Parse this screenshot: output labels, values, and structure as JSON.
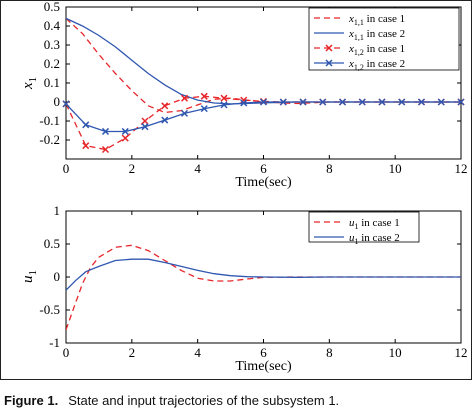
{
  "caption": {
    "label": "Figure 1.",
    "text": "State and input trajectories of the subsystem 1."
  },
  "colors": {
    "case1": "#e8262a",
    "case2": "#2f57b0",
    "axis": "#000000"
  },
  "chart_data": [
    {
      "type": "line",
      "ylabel": "x",
      "ylabel_sub": "1",
      "xlabel": "Time(sec)",
      "xlim": [
        0,
        12
      ],
      "ylim": [
        -0.3,
        0.5
      ],
      "xticks": [
        0,
        2,
        4,
        6,
        8,
        10,
        12
      ],
      "yticks": [
        -0.3,
        -0.1,
        0.1,
        0.3,
        0.5
      ],
      "ytick_labels": [
        "",
        "-0.1",
        "0.1",
        "0.3",
        "0.5"
      ],
      "extra_tick_labels": [
        "0.4",
        "0.2",
        "0",
        "-0.2"
      ],
      "legend_position": "top-right",
      "series": [
        {
          "name": "x",
          "sub": "1,1",
          "suffix": " in case 1",
          "style": "dashed",
          "color": "case1",
          "marker": "none",
          "points": [
            [
              0,
              0.44
            ],
            [
              0.5,
              0.36
            ],
            [
              1,
              0.25
            ],
            [
              1.5,
              0.15
            ],
            [
              2,
              0.06
            ],
            [
              2.5,
              -0.02
            ],
            [
              3,
              -0.055
            ],
            [
              3.5,
              -0.045
            ],
            [
              4,
              -0.015
            ],
            [
              4.5,
              0.015
            ],
            [
              5,
              0.02
            ],
            [
              5.5,
              0.01
            ],
            [
              6,
              0.0
            ],
            [
              7,
              -0.008
            ],
            [
              8,
              0.0
            ],
            [
              9,
              0.0
            ],
            [
              10,
              0.0
            ],
            [
              11,
              0.0
            ],
            [
              12,
              0.0
            ]
          ]
        },
        {
          "name": "x",
          "sub": "1,1",
          "suffix": " in case 2",
          "style": "solid",
          "color": "case2",
          "marker": "none",
          "points": [
            [
              0,
              0.44
            ],
            [
              0.5,
              0.4
            ],
            [
              1,
              0.35
            ],
            [
              1.5,
              0.29
            ],
            [
              2,
              0.22
            ],
            [
              2.5,
              0.15
            ],
            [
              3,
              0.09
            ],
            [
              3.5,
              0.04
            ],
            [
              4,
              0.01
            ],
            [
              4.5,
              -0.005
            ],
            [
              5,
              -0.01
            ],
            [
              5.5,
              -0.008
            ],
            [
              6,
              -0.004
            ],
            [
              7,
              0.0
            ],
            [
              8,
              0.0
            ],
            [
              9,
              0.0
            ],
            [
              10,
              0.0
            ],
            [
              11,
              0.0
            ],
            [
              12,
              0.0
            ]
          ]
        },
        {
          "name": "x",
          "sub": "1,2",
          "suffix": " in case 1",
          "style": "dashed",
          "color": "case1",
          "marker": "x",
          "points": [
            [
              0,
              -0.01
            ],
            [
              0.6,
              -0.23
            ],
            [
              1.2,
              -0.25
            ],
            [
              1.8,
              -0.19
            ],
            [
              2.4,
              -0.1
            ],
            [
              3.0,
              -0.02
            ],
            [
              3.6,
              0.02
            ],
            [
              4.2,
              0.03
            ],
            [
              4.8,
              0.02
            ],
            [
              5.4,
              0.01
            ],
            [
              6.0,
              0.003
            ],
            [
              6.6,
              0.0
            ],
            [
              7.2,
              0.0
            ],
            [
              7.8,
              0.0
            ],
            [
              8.4,
              0.0
            ],
            [
              9.0,
              0.0
            ],
            [
              9.6,
              0.0
            ],
            [
              10.2,
              0.0
            ],
            [
              10.8,
              0.0
            ],
            [
              11.4,
              0.0
            ],
            [
              12,
              0.0
            ]
          ]
        },
        {
          "name": "x",
          "sub": "1,2",
          "suffix": " in case 2",
          "style": "solid",
          "color": "case2",
          "marker": "x",
          "points": [
            [
              0,
              -0.01
            ],
            [
              0.6,
              -0.12
            ],
            [
              1.2,
              -0.155
            ],
            [
              1.8,
              -0.155
            ],
            [
              2.4,
              -0.13
            ],
            [
              3.0,
              -0.095
            ],
            [
              3.6,
              -0.06
            ],
            [
              4.2,
              -0.035
            ],
            [
              4.8,
              -0.015
            ],
            [
              5.4,
              -0.005
            ],
            [
              6.0,
              0.0
            ],
            [
              6.6,
              0.0
            ],
            [
              7.2,
              0.0
            ],
            [
              7.8,
              0.0
            ],
            [
              8.4,
              0.0
            ],
            [
              9.0,
              0.0
            ],
            [
              9.6,
              0.0
            ],
            [
              10.2,
              0.0
            ],
            [
              10.8,
              0.0
            ],
            [
              11.4,
              0.0
            ],
            [
              12,
              0.0
            ]
          ]
        }
      ]
    },
    {
      "type": "line",
      "ylabel": "u",
      "ylabel_sub": "1",
      "xlabel": "Time(sec)",
      "xlim": [
        0,
        12
      ],
      "ylim": [
        -1,
        1
      ],
      "xticks": [
        0,
        2,
        4,
        6,
        8,
        10,
        12
      ],
      "yticks": [
        -1,
        -0.5,
        0,
        0.5,
        1
      ],
      "ytick_labels": [
        "-1",
        "-0.5",
        "0",
        "0.5",
        "1"
      ],
      "legend_position": "top-right",
      "series": [
        {
          "name": "u",
          "sub": "1",
          "suffix": " in case 1",
          "style": "dashed",
          "color": "case1",
          "marker": "none",
          "points": [
            [
              0,
              -0.8
            ],
            [
              0.25,
              -0.45
            ],
            [
              0.5,
              -0.1
            ],
            [
              0.75,
              0.15
            ],
            [
              1,
              0.3
            ],
            [
              1.5,
              0.45
            ],
            [
              2,
              0.48
            ],
            [
              2.5,
              0.4
            ],
            [
              3,
              0.25
            ],
            [
              3.5,
              0.1
            ],
            [
              4,
              -0.02
            ],
            [
              4.5,
              -0.06
            ],
            [
              5,
              -0.06
            ],
            [
              5.5,
              -0.03
            ],
            [
              6,
              -0.005
            ],
            [
              7,
              0.0
            ],
            [
              8,
              0.0
            ],
            [
              9,
              0.0
            ],
            [
              10,
              0.0
            ],
            [
              11,
              0.0
            ],
            [
              12,
              0.0
            ]
          ]
        },
        {
          "name": "u",
          "sub": "1",
          "suffix": " in case 2",
          "style": "solid",
          "color": "case2",
          "marker": "none",
          "points": [
            [
              0,
              -0.2
            ],
            [
              0.3,
              -0.05
            ],
            [
              0.6,
              0.08
            ],
            [
              1,
              0.16
            ],
            [
              1.5,
              0.25
            ],
            [
              2,
              0.27
            ],
            [
              2.5,
              0.27
            ],
            [
              3,
              0.22
            ],
            [
              3.5,
              0.16
            ],
            [
              4,
              0.1
            ],
            [
              4.5,
              0.05
            ],
            [
              5,
              0.02
            ],
            [
              5.5,
              0.005
            ],
            [
              6,
              0.0
            ],
            [
              7,
              -0.005
            ],
            [
              8,
              0.0
            ],
            [
              9,
              0.0
            ],
            [
              10,
              0.0
            ],
            [
              11,
              0.0
            ],
            [
              12,
              0.0
            ]
          ]
        }
      ]
    }
  ]
}
